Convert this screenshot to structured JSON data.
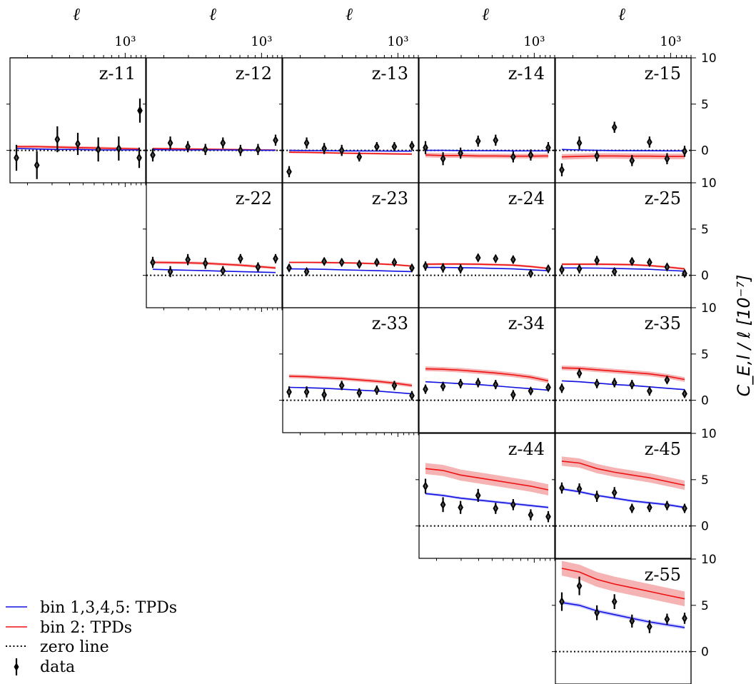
{
  "chart_data": {
    "type": "scatter",
    "title": "",
    "xlabel": "ℓ",
    "xscale": "log",
    "x_tick_label": "10³",
    "ylabel": "C_E,l / ℓ [10⁻⁷]",
    "ylim": [
      -3.5,
      10
    ],
    "yticks": [
      0,
      5,
      10
    ],
    "legend": {
      "placement": "lower-left",
      "entries": [
        {
          "label": "bin 1,3,4,5: TPDs",
          "style": "blue-line",
          "color": "#1010e0"
        },
        {
          "label": "bin 2: TPDs",
          "style": "red-line",
          "color": "#ee1111"
        },
        {
          "label": "zero line",
          "style": "dotted-line",
          "color": "#000000"
        },
        {
          "label": "data",
          "style": "errorbar-diamond",
          "color": "#000000"
        }
      ]
    },
    "ell": [
      180,
      260,
      370,
      530,
      760,
      1090,
      1560
    ],
    "panels": [
      {
        "name": "z-11",
        "row": 0,
        "col": 0,
        "data": [
          -0.8,
          -1.6,
          1.2,
          0.7,
          0.1,
          0.2,
          -0.8
        ],
        "err": [
          1.4,
          1.5,
          1.4,
          1.2,
          1.3,
          1.3,
          1.1
        ],
        "extra_point": {
          "value": 4.3,
          "err": 1.3
        },
        "blue": [
          0.2,
          0.15,
          0.1,
          0.1,
          0.05,
          0.05,
          0.05
        ],
        "red": [
          0.4,
          0.4,
          0.35,
          0.3,
          0.25,
          0.2,
          0.15
        ],
        "red_band": 0.15,
        "blue_band": 0.05
      },
      {
        "name": "z-12",
        "row": 0,
        "col": 1,
        "data": [
          -0.5,
          0.8,
          0.4,
          0.1,
          0.8,
          0.0,
          0.1,
          1.1
        ],
        "err": [
          0.7,
          0.7,
          0.6,
          0.6,
          0.6,
          0.6,
          0.6,
          0.6
        ],
        "blue": [
          0.1,
          0.05,
          0.05,
          0.05,
          0.05,
          0.03,
          0.02,
          0.02
        ],
        "red": [
          0.2,
          0.18,
          0.15,
          0.13,
          0.1,
          0.08,
          0.05,
          0.03
        ],
        "red_band": 0.1,
        "blue_band": 0.03
      },
      {
        "name": "z-13",
        "row": 0,
        "col": 2,
        "data": [
          -2.3,
          0.8,
          0.2,
          0.0,
          -0.7,
          0.4,
          0.4,
          0.5
        ],
        "err": [
          0.6,
          0.6,
          0.6,
          0.6,
          0.5,
          0.5,
          0.5,
          0.5
        ],
        "blue": [
          0.0,
          -0.02,
          -0.03,
          -0.05,
          -0.06,
          -0.07,
          -0.08,
          -0.08
        ],
        "red": [
          -0.2,
          -0.22,
          -0.25,
          -0.3,
          -0.32,
          -0.35,
          -0.38,
          -0.4
        ],
        "red_band": 0.1,
        "blue_band": 0.03
      },
      {
        "name": "z-14",
        "row": 0,
        "col": 3,
        "data": [
          0.3,
          -0.9,
          -0.3,
          1.0,
          1.1,
          -0.7,
          -0.5,
          0.3
        ],
        "err": [
          0.7,
          0.7,
          0.6,
          0.6,
          0.6,
          0.6,
          0.6,
          0.6
        ],
        "blue": [
          0.0,
          0.0,
          -0.02,
          -0.03,
          -0.04,
          -0.05,
          -0.05,
          -0.05
        ],
        "red": [
          -0.5,
          -0.55,
          -0.55,
          -0.6,
          -0.6,
          -0.62,
          -0.62,
          -0.6
        ],
        "red_band": 0.25,
        "blue_band": 0.05
      },
      {
        "name": "z-15",
        "row": 0,
        "col": 4,
        "data": [
          -2.1,
          0.8,
          -0.6,
          2.5,
          -1.1,
          0.9,
          -0.9,
          -0.1
        ],
        "err": [
          0.7,
          0.7,
          0.6,
          0.6,
          0.6,
          0.6,
          0.6,
          0.6
        ],
        "blue": [
          0.1,
          0.05,
          0.0,
          -0.02,
          -0.03,
          -0.04,
          -0.05,
          -0.05
        ],
        "red": [
          -0.7,
          -0.65,
          -0.6,
          -0.6,
          -0.62,
          -0.62,
          -0.65,
          -0.65
        ],
        "red_band": 0.3,
        "blue_band": 0.05
      },
      {
        "name": "z-22",
        "row": 1,
        "col": 1,
        "data": [
          1.4,
          0.4,
          1.7,
          1.3,
          0.5,
          1.8,
          0.9,
          1.8
        ],
        "err": [
          0.6,
          0.6,
          0.6,
          0.6,
          0.5,
          0.5,
          0.5,
          0.5
        ],
        "blue": [
          0.65,
          0.6,
          0.55,
          0.5,
          0.45,
          0.4,
          0.35,
          0.3
        ],
        "red": [
          1.4,
          1.38,
          1.35,
          1.3,
          1.2,
          1.1,
          0.95,
          0.8
        ],
        "red_band": 0.15,
        "blue_band": 0.04
      },
      {
        "name": "z-23",
        "row": 1,
        "col": 2,
        "data": [
          0.8,
          0.4,
          1.5,
          1.4,
          1.2,
          1.4,
          1.4,
          0.8
        ],
        "err": [
          0.4,
          0.4,
          0.4,
          0.4,
          0.4,
          0.4,
          0.4,
          0.4
        ],
        "blue": [
          0.7,
          0.68,
          0.65,
          0.6,
          0.55,
          0.5,
          0.45,
          0.4
        ],
        "red": [
          1.4,
          1.4,
          1.38,
          1.35,
          1.32,
          1.25,
          1.15,
          1.0
        ],
        "red_band": 0.1,
        "blue_band": 0.03
      },
      {
        "name": "z-24",
        "row": 1,
        "col": 3,
        "data": [
          1.0,
          0.8,
          0.7,
          1.9,
          1.8,
          1.7,
          0.2,
          0.7
        ],
        "err": [
          0.5,
          0.5,
          0.5,
          0.4,
          0.4,
          0.4,
          0.4,
          0.4
        ],
        "blue": [
          0.85,
          0.85,
          0.83,
          0.8,
          0.75,
          0.7,
          0.6,
          0.5
        ],
        "red": [
          1.2,
          1.22,
          1.22,
          1.2,
          1.15,
          1.1,
          0.95,
          0.75
        ],
        "red_band": 0.12,
        "blue_band": 0.04
      },
      {
        "name": "z-25",
        "row": 1,
        "col": 4,
        "data": [
          0.6,
          0.7,
          1.6,
          0.4,
          1.5,
          1.4,
          0.9,
          0.2
        ],
        "err": [
          0.5,
          0.5,
          0.5,
          0.4,
          0.4,
          0.4,
          0.4,
          0.4
        ],
        "blue": [
          0.8,
          0.8,
          0.78,
          0.75,
          0.7,
          0.65,
          0.55,
          0.45
        ],
        "red": [
          1.2,
          1.2,
          1.2,
          1.18,
          1.15,
          1.05,
          0.9,
          0.7
        ],
        "red_band": 0.12,
        "blue_band": 0.04
      },
      {
        "name": "z-33",
        "row": 2,
        "col": 2,
        "data": [
          0.9,
          0.9,
          0.6,
          1.6,
          0.8,
          1.1,
          1.6,
          0.5
        ],
        "err": [
          0.6,
          0.6,
          0.6,
          0.5,
          0.5,
          0.5,
          0.5,
          0.5
        ],
        "blue": [
          1.4,
          1.35,
          1.3,
          1.2,
          1.1,
          1.0,
          0.85,
          0.7
        ],
        "red": [
          2.6,
          2.55,
          2.45,
          2.35,
          2.2,
          2.05,
          1.85,
          1.6
        ],
        "red_band": 0.2,
        "blue_band": 0.05
      },
      {
        "name": "z-34",
        "row": 2,
        "col": 3,
        "data": [
          1.2,
          1.5,
          1.8,
          1.9,
          1.7,
          0.6,
          1.0,
          1.4
        ],
        "err": [
          0.5,
          0.5,
          0.5,
          0.5,
          0.5,
          0.5,
          0.4,
          0.4
        ],
        "blue": [
          2.0,
          1.9,
          1.8,
          1.7,
          1.55,
          1.4,
          1.25,
          1.1
        ],
        "red": [
          3.4,
          3.35,
          3.25,
          3.1,
          2.95,
          2.75,
          2.5,
          2.1
        ],
        "red_band": 0.25,
        "blue_band": 0.06
      },
      {
        "name": "z-35",
        "row": 2,
        "col": 4,
        "data": [
          1.3,
          2.9,
          1.8,
          1.9,
          1.7,
          1.0,
          2.2,
          0.7
        ],
        "err": [
          0.5,
          0.5,
          0.5,
          0.5,
          0.5,
          0.5,
          0.4,
          0.4
        ],
        "blue": [
          2.1,
          2.0,
          1.85,
          1.7,
          1.6,
          1.45,
          1.3,
          1.15
        ],
        "red": [
          3.5,
          3.45,
          3.3,
          3.15,
          3.0,
          2.85,
          2.6,
          2.25
        ],
        "red_band": 0.25,
        "blue_band": 0.06
      },
      {
        "name": "z-44",
        "row": 3,
        "col": 3,
        "data": [
          4.3,
          2.3,
          2.0,
          3.3,
          1.9,
          2.3,
          1.2,
          1.0
        ],
        "err": [
          0.8,
          0.8,
          0.7,
          0.7,
          0.6,
          0.6,
          0.6,
          0.6
        ],
        "blue": [
          3.5,
          3.3,
          3.0,
          2.8,
          2.6,
          2.4,
          2.2,
          2.0
        ],
        "red": [
          6.2,
          6.0,
          5.5,
          5.2,
          4.9,
          4.6,
          4.3,
          3.9
        ],
        "red_band": 0.6,
        "blue_band": 0.15
      },
      {
        "name": "z-45",
        "row": 3,
        "col": 4,
        "data": [
          4.1,
          4.0,
          3.2,
          3.6,
          1.9,
          2.0,
          2.2,
          1.9
        ],
        "err": [
          0.6,
          0.6,
          0.6,
          0.6,
          0.5,
          0.5,
          0.5,
          0.5
        ],
        "blue": [
          4.0,
          3.7,
          3.3,
          3.0,
          2.7,
          2.5,
          2.3,
          2.0
        ],
        "red": [
          7.0,
          6.8,
          6.2,
          5.8,
          5.5,
          5.2,
          4.8,
          4.4
        ],
        "red_band": 0.5,
        "blue_band": 0.15
      },
      {
        "name": "z-55",
        "row": 4,
        "col": 4,
        "data": [
          5.4,
          7.1,
          4.2,
          5.4,
          3.3,
          2.7,
          3.5,
          3.6
        ],
        "err": [
          1.0,
          1.0,
          0.8,
          0.8,
          0.7,
          0.7,
          0.6,
          0.6
        ],
        "blue": [
          5.3,
          5.0,
          4.4,
          4.0,
          3.6,
          3.2,
          2.9,
          2.6
        ],
        "red": [
          9.0,
          8.6,
          7.8,
          7.3,
          6.9,
          6.5,
          6.1,
          5.7
        ],
        "red_band": 0.8,
        "blue_band": 0.2
      }
    ]
  }
}
